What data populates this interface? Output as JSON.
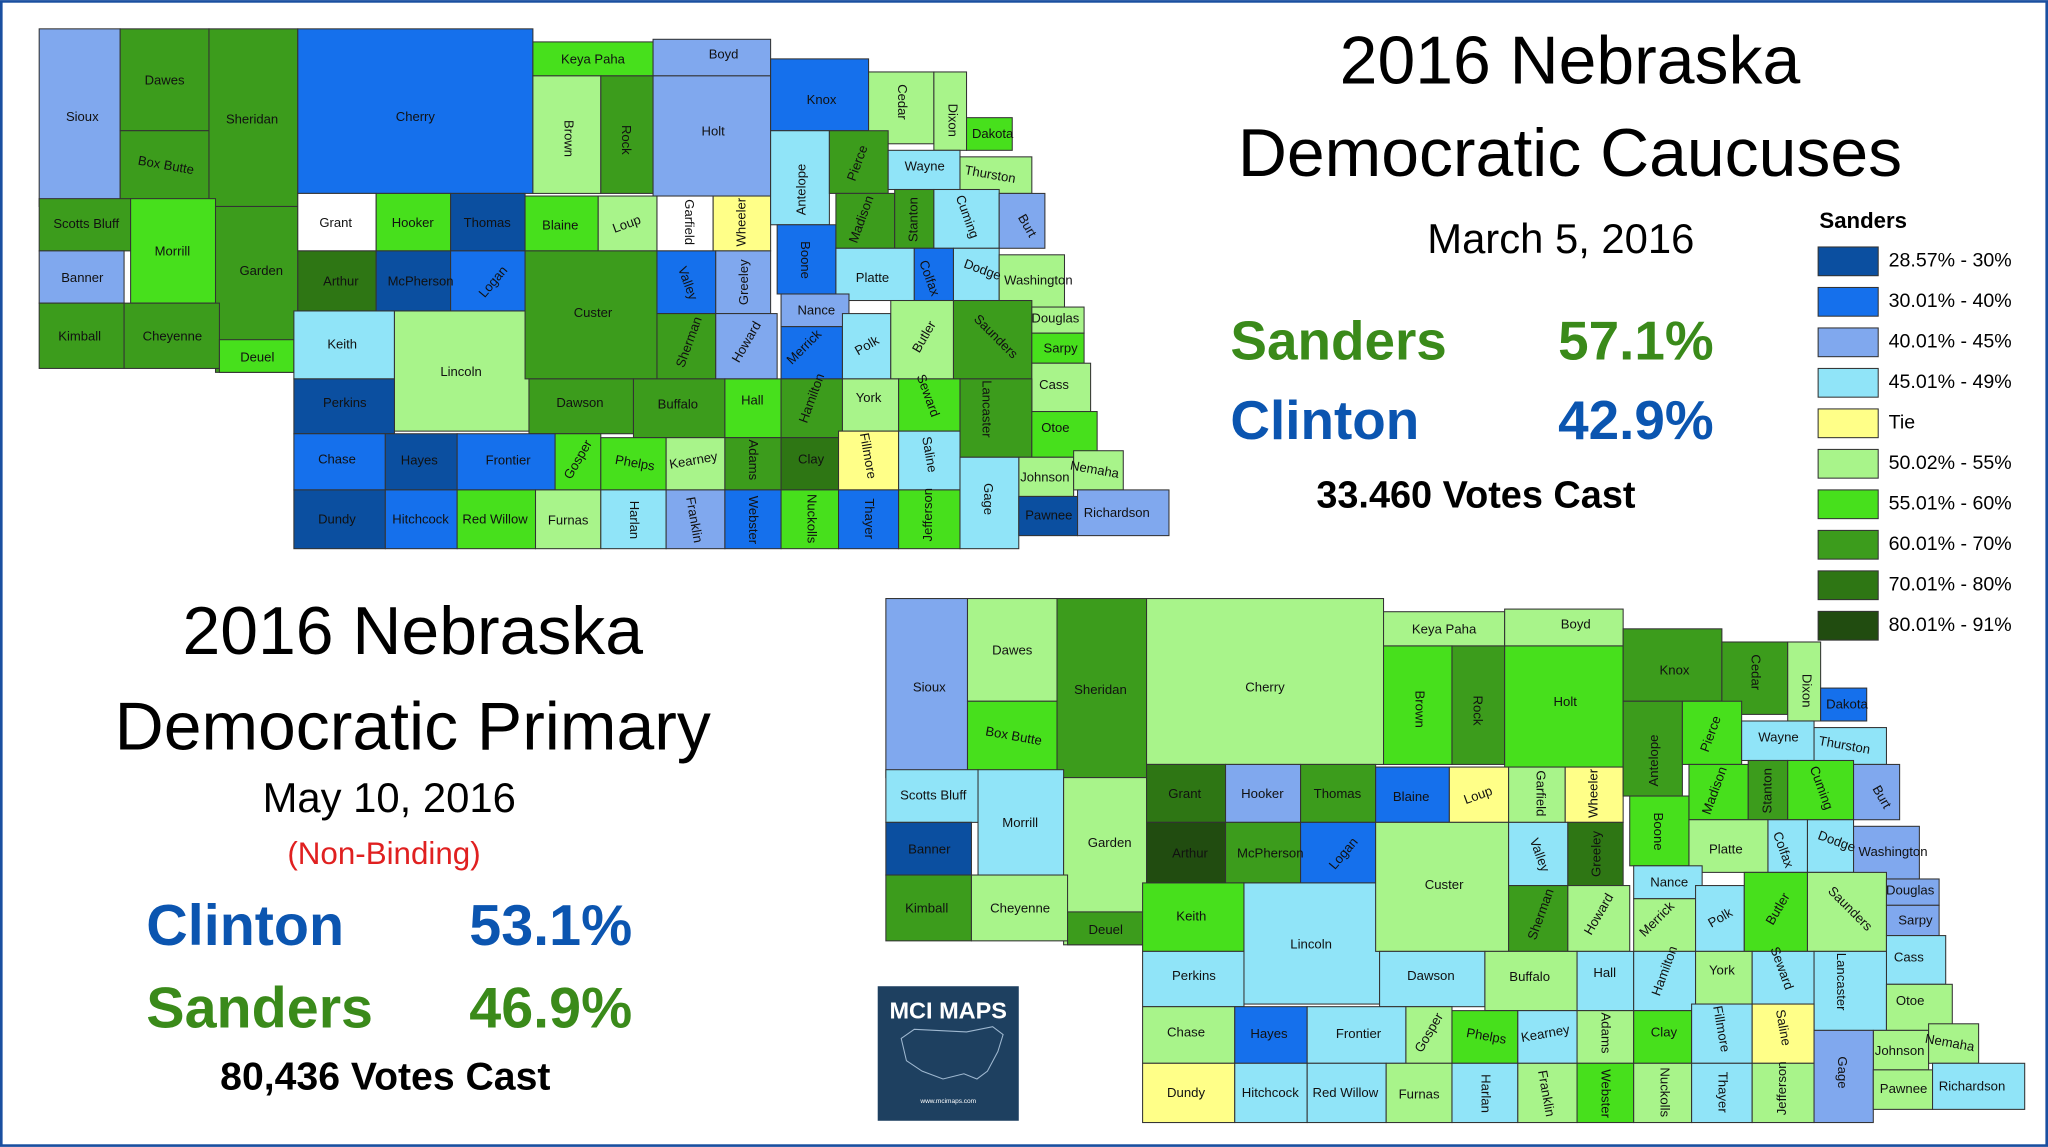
{
  "caucus": {
    "title_lines": [
      "2016 Nebraska",
      "Democratic Caucuses"
    ],
    "date": "March 5, 2016",
    "results": [
      {
        "candidate": "Sanders",
        "share": "57.1%",
        "color": "#3a8a1a"
      },
      {
        "candidate": "Clinton",
        "share": "42.9%",
        "color": "#0b55b0"
      }
    ],
    "votes": "33.460 Votes Cast",
    "counties": [
      {
        "name": "Sioux",
        "color": "#80a8ee"
      },
      {
        "name": "Dawes",
        "color": "#3c9c1c"
      },
      {
        "name": "Box Butte",
        "color": "#3c9c1c"
      },
      {
        "name": "Sheridan",
        "color": "#3c9c1c"
      },
      {
        "name": "Cherry",
        "color": "#1570ec"
      },
      {
        "name": "Keya Paha",
        "color": "#47e01c"
      },
      {
        "name": "Boyd",
        "color": "#80a8ee"
      },
      {
        "name": "Brown",
        "color": "#a8f48a"
      },
      {
        "name": "Rock",
        "color": "#3c9c1c"
      },
      {
        "name": "Holt",
        "color": "#80a8ee"
      },
      {
        "name": "Knox",
        "color": "#1570ec"
      },
      {
        "name": "Cedar",
        "color": "#a8f48a"
      },
      {
        "name": "Dixon",
        "color": "#a8f48a"
      },
      {
        "name": "Dakota",
        "color": "#47e01c"
      },
      {
        "name": "Scotts Bluff",
        "color": "#3c9c1c"
      },
      {
        "name": "Morrill",
        "color": "#47e01c"
      },
      {
        "name": "Garden",
        "color": "#3c9c1c"
      },
      {
        "name": "Banner",
        "color": "#80a8ee"
      },
      {
        "name": "Kimball",
        "color": "#3c9c1c"
      },
      {
        "name": "Cheyenne",
        "color": "#3c9c1c"
      },
      {
        "name": "Deuel",
        "color": "#47e01c"
      },
      {
        "name": "Grant",
        "color": "#ffffff"
      },
      {
        "name": "Hooker",
        "color": "#47e01c"
      },
      {
        "name": "Thomas",
        "color": "#0b4fa0"
      },
      {
        "name": "Arthur",
        "color": "#2e7614"
      },
      {
        "name": "McPherson",
        "color": "#0b4fa0"
      },
      {
        "name": "Logan",
        "color": "#1570ec"
      },
      {
        "name": "Blaine",
        "color": "#47e01c"
      },
      {
        "name": "Loup",
        "color": "#a8f48a"
      },
      {
        "name": "Garfield",
        "color": "#ffffff"
      },
      {
        "name": "Wheeler",
        "color": "#ffff88"
      },
      {
        "name": "Antelope",
        "color": "#90e4f8"
      },
      {
        "name": "Pierce",
        "color": "#3c9c1c"
      },
      {
        "name": "Wayne",
        "color": "#90e4f8"
      },
      {
        "name": "Thurston",
        "color": "#a8f48a"
      },
      {
        "name": "Keith",
        "color": "#90e4f8"
      },
      {
        "name": "Lincoln",
        "color": "#a8f48a"
      },
      {
        "name": "Custer",
        "color": "#3c9c1c"
      },
      {
        "name": "Valley",
        "color": "#1570ec"
      },
      {
        "name": "Greeley",
        "color": "#80a8ee"
      },
      {
        "name": "Sherman",
        "color": "#3c9c1c"
      },
      {
        "name": "Howard",
        "color": "#80a8ee"
      },
      {
        "name": "Boone",
        "color": "#1570ec"
      },
      {
        "name": "Madison",
        "color": "#3c9c1c"
      },
      {
        "name": "Stanton",
        "color": "#3c9c1c"
      },
      {
        "name": "Cuming",
        "color": "#90e4f8"
      },
      {
        "name": "Burt",
        "color": "#80a8ee"
      },
      {
        "name": "Platte",
        "color": "#90e4f8"
      },
      {
        "name": "Colfax",
        "color": "#1570ec"
      },
      {
        "name": "Dodge",
        "color": "#90e4f8"
      },
      {
        "name": "Washington",
        "color": "#a8f48a"
      },
      {
        "name": "Nance",
        "color": "#80a8ee"
      },
      {
        "name": "Merrick",
        "color": "#1570ec"
      },
      {
        "name": "Polk",
        "color": "#90e4f8"
      },
      {
        "name": "Butler",
        "color": "#a8f48a"
      },
      {
        "name": "Saunders",
        "color": "#3c9c1c"
      },
      {
        "name": "Douglas",
        "color": "#a8f48a"
      },
      {
        "name": "Sarpy",
        "color": "#47e01c"
      },
      {
        "name": "Cass",
        "color": "#a8f48a"
      },
      {
        "name": "Perkins",
        "color": "#0b4fa0"
      },
      {
        "name": "Dawson",
        "color": "#3c9c1c"
      },
      {
        "name": "Buffalo",
        "color": "#3c9c1c"
      },
      {
        "name": "Hall",
        "color": "#47e01c"
      },
      {
        "name": "Hamilton",
        "color": "#3c9c1c"
      },
      {
        "name": "York",
        "color": "#a8f48a"
      },
      {
        "name": "Seward",
        "color": "#47e01c"
      },
      {
        "name": "Lancaster",
        "color": "#3c9c1c"
      },
      {
        "name": "Otoe",
        "color": "#47e01c"
      },
      {
        "name": "Chase",
        "color": "#1570ec"
      },
      {
        "name": "Hayes",
        "color": "#0b4fa0"
      },
      {
        "name": "Frontier",
        "color": "#1570ec"
      },
      {
        "name": "Gosper",
        "color": "#47e01c"
      },
      {
        "name": "Phelps",
        "color": "#47e01c"
      },
      {
        "name": "Kearney",
        "color": "#a8f48a"
      },
      {
        "name": "Adams",
        "color": "#3c9c1c"
      },
      {
        "name": "Clay",
        "color": "#2e7614"
      },
      {
        "name": "Fillmore",
        "color": "#ffff88"
      },
      {
        "name": "Saline",
        "color": "#90e4f8"
      },
      {
        "name": "Johnson",
        "color": "#a8f48a"
      },
      {
        "name": "Nemaha",
        "color": "#a8f48a"
      },
      {
        "name": "Dundy",
        "color": "#0b4fa0"
      },
      {
        "name": "Hitchcock",
        "color": "#1570ec"
      },
      {
        "name": "Red Willow",
        "color": "#47e01c"
      },
      {
        "name": "Furnas",
        "color": "#a8f48a"
      },
      {
        "name": "Harlan",
        "color": "#90e4f8"
      },
      {
        "name": "Franklin",
        "color": "#80a8ee"
      },
      {
        "name": "Webster",
        "color": "#1570ec"
      },
      {
        "name": "Nuckolls",
        "color": "#47e01c"
      },
      {
        "name": "Thayer",
        "color": "#1570ec"
      },
      {
        "name": "Jefferson",
        "color": "#47e01c"
      },
      {
        "name": "Gage",
        "color": "#90e4f8"
      },
      {
        "name": "Pawnee",
        "color": "#0b4fa0"
      },
      {
        "name": "Richardson",
        "color": "#80a8ee"
      }
    ]
  },
  "primary": {
    "title_lines": [
      "2016 Nebraska",
      "Democratic Primary"
    ],
    "date": "May 10, 2016",
    "note": "(Non-Binding)",
    "results": [
      {
        "candidate": "Clinton",
        "share": "53.1%",
        "color": "#0b55b0"
      },
      {
        "candidate": "Sanders",
        "share": "46.9%",
        "color": "#3a8a1a"
      }
    ],
    "votes": "80,436 Votes Cast",
    "counties": [
      {
        "name": "Sioux",
        "color": "#80a8ee"
      },
      {
        "name": "Dawes",
        "color": "#a8f48a"
      },
      {
        "name": "Box Butte",
        "color": "#47e01c"
      },
      {
        "name": "Sheridan",
        "color": "#3c9c1c"
      },
      {
        "name": "Cherry",
        "color": "#a8f48a"
      },
      {
        "name": "Keya Paha",
        "color": "#a8f48a"
      },
      {
        "name": "Boyd",
        "color": "#a8f48a"
      },
      {
        "name": "Brown",
        "color": "#47e01c"
      },
      {
        "name": "Rock",
        "color": "#3c9c1c"
      },
      {
        "name": "Holt",
        "color": "#47e01c"
      },
      {
        "name": "Knox",
        "color": "#3c9c1c"
      },
      {
        "name": "Cedar",
        "color": "#3c9c1c"
      },
      {
        "name": "Dixon",
        "color": "#a8f48a"
      },
      {
        "name": "Dakota",
        "color": "#1570ec"
      },
      {
        "name": "Scotts Bluff",
        "color": "#90e4f8"
      },
      {
        "name": "Morrill",
        "color": "#90e4f8"
      },
      {
        "name": "Garden",
        "color": "#a8f48a"
      },
      {
        "name": "Banner",
        "color": "#0b4fa0"
      },
      {
        "name": "Kimball",
        "color": "#3c9c1c"
      },
      {
        "name": "Cheyenne",
        "color": "#a8f48a"
      },
      {
        "name": "Deuel",
        "color": "#3c9c1c"
      },
      {
        "name": "Grant",
        "color": "#2e7614"
      },
      {
        "name": "Hooker",
        "color": "#80a8ee"
      },
      {
        "name": "Thomas",
        "color": "#3c9c1c"
      },
      {
        "name": "Arthur",
        "color": "#214c10"
      },
      {
        "name": "McPherson",
        "color": "#3c9c1c"
      },
      {
        "name": "Logan",
        "color": "#1570ec"
      },
      {
        "name": "Blaine",
        "color": "#1570ec"
      },
      {
        "name": "Loup",
        "color": "#ffff88"
      },
      {
        "name": "Garfield",
        "color": "#a8f48a"
      },
      {
        "name": "Wheeler",
        "color": "#ffff88"
      },
      {
        "name": "Antelope",
        "color": "#3c9c1c"
      },
      {
        "name": "Pierce",
        "color": "#47e01c"
      },
      {
        "name": "Wayne",
        "color": "#90e4f8"
      },
      {
        "name": "Thurston",
        "color": "#90e4f8"
      },
      {
        "name": "Keith",
        "color": "#47e01c"
      },
      {
        "name": "Lincoln",
        "color": "#90e4f8"
      },
      {
        "name": "Custer",
        "color": "#a8f48a"
      },
      {
        "name": "Valley",
        "color": "#90e4f8"
      },
      {
        "name": "Greeley",
        "color": "#2e7614"
      },
      {
        "name": "Sherman",
        "color": "#3c9c1c"
      },
      {
        "name": "Howard",
        "color": "#a8f48a"
      },
      {
        "name": "Boone",
        "color": "#47e01c"
      },
      {
        "name": "Madison",
        "color": "#47e01c"
      },
      {
        "name": "Stanton",
        "color": "#3c9c1c"
      },
      {
        "name": "Cuming",
        "color": "#47e01c"
      },
      {
        "name": "Burt",
        "color": "#80a8ee"
      },
      {
        "name": "Platte",
        "color": "#a8f48a"
      },
      {
        "name": "Colfax",
        "color": "#90e4f8"
      },
      {
        "name": "Dodge",
        "color": "#90e4f8"
      },
      {
        "name": "Washington",
        "color": "#80a8ee"
      },
      {
        "name": "Nance",
        "color": "#90e4f8"
      },
      {
        "name": "Merrick",
        "color": "#a8f48a"
      },
      {
        "name": "Polk",
        "color": "#90e4f8"
      },
      {
        "name": "Butler",
        "color": "#47e01c"
      },
      {
        "name": "Saunders",
        "color": "#a8f48a"
      },
      {
        "name": "Douglas",
        "color": "#80a8ee"
      },
      {
        "name": "Sarpy",
        "color": "#80a8ee"
      },
      {
        "name": "Cass",
        "color": "#90e4f8"
      },
      {
        "name": "Perkins",
        "color": "#90e4f8"
      },
      {
        "name": "Dawson",
        "color": "#90e4f8"
      },
      {
        "name": "Buffalo",
        "color": "#a8f48a"
      },
      {
        "name": "Hall",
        "color": "#90e4f8"
      },
      {
        "name": "Hamilton",
        "color": "#90e4f8"
      },
      {
        "name": "York",
        "color": "#a8f48a"
      },
      {
        "name": "Seward",
        "color": "#90e4f8"
      },
      {
        "name": "Lancaster",
        "color": "#90e4f8"
      },
      {
        "name": "Otoe",
        "color": "#a8f48a"
      },
      {
        "name": "Chase",
        "color": "#a8f48a"
      },
      {
        "name": "Hayes",
        "color": "#1570ec"
      },
      {
        "name": "Frontier",
        "color": "#90e4f8"
      },
      {
        "name": "Gosper",
        "color": "#a8f48a"
      },
      {
        "name": "Phelps",
        "color": "#47e01c"
      },
      {
        "name": "Kearney",
        "color": "#90e4f8"
      },
      {
        "name": "Adams",
        "color": "#a8f48a"
      },
      {
        "name": "Clay",
        "color": "#47e01c"
      },
      {
        "name": "Fillmore",
        "color": "#90e4f8"
      },
      {
        "name": "Saline",
        "color": "#ffff88"
      },
      {
        "name": "Johnson",
        "color": "#a8f48a"
      },
      {
        "name": "Nemaha",
        "color": "#a8f48a"
      },
      {
        "name": "Dundy",
        "color": "#ffff88"
      },
      {
        "name": "Hitchcock",
        "color": "#90e4f8"
      },
      {
        "name": "Red Willow",
        "color": "#90e4f8"
      },
      {
        "name": "Furnas",
        "color": "#a8f48a"
      },
      {
        "name": "Harlan",
        "color": "#90e4f8"
      },
      {
        "name": "Franklin",
        "color": "#a8f48a"
      },
      {
        "name": "Webster",
        "color": "#47e01c"
      },
      {
        "name": "Nuckolls",
        "color": "#a8f48a"
      },
      {
        "name": "Thayer",
        "color": "#90e4f8"
      },
      {
        "name": "Jefferson",
        "color": "#a8f48a"
      },
      {
        "name": "Gage",
        "color": "#80a8ee"
      },
      {
        "name": "Pawnee",
        "color": "#a8f48a"
      },
      {
        "name": "Richardson",
        "color": "#90e4f8"
      }
    ]
  },
  "legend": {
    "title": "Sanders",
    "items": [
      {
        "label": "28.57% - 30%",
        "color": "#0b4fa0"
      },
      {
        "label": "30.01% - 40%",
        "color": "#1570ec"
      },
      {
        "label": "40.01% - 45%",
        "color": "#80a8ee"
      },
      {
        "label": "45.01% - 49%",
        "color": "#90e4f8"
      },
      {
        "label": "Tie",
        "color": "#ffff88"
      },
      {
        "label": "50.02% - 55%",
        "color": "#a8f48a"
      },
      {
        "label": "55.01% - 60%",
        "color": "#47e01c"
      },
      {
        "label": "60.01% - 70%",
        "color": "#3c9c1c"
      },
      {
        "label": "70.01% - 80%",
        "color": "#2e7614"
      },
      {
        "label": "80.01% - 91%",
        "color": "#214c10"
      }
    ]
  },
  "logo": {
    "title": "MCI MAPS",
    "url": "www.mcimaps.com"
  }
}
